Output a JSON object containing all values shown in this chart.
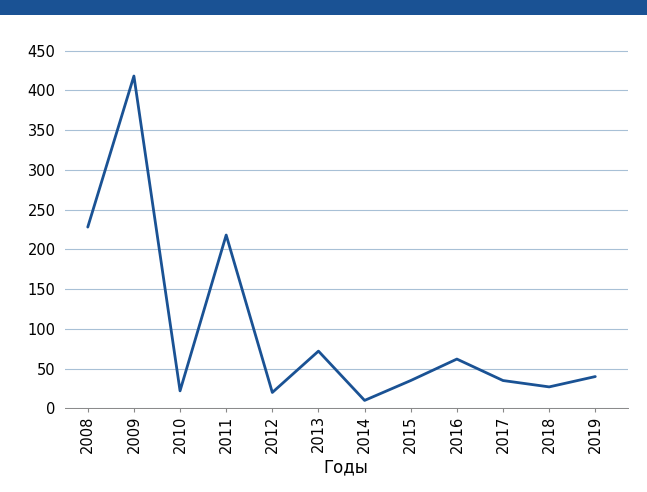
{
  "years": [
    2008,
    2009,
    2010,
    2011,
    2012,
    2013,
    2014,
    2015,
    2016,
    2017,
    2018,
    2019
  ],
  "values": [
    228,
    418,
    22,
    218,
    20,
    72,
    10,
    35,
    62,
    35,
    27,
    40
  ],
  "line_color": "#1a5294",
  "line_width": 2.0,
  "xlabel": "Годы",
  "ylim": [
    0,
    470
  ],
  "yticks": [
    0,
    50,
    100,
    150,
    200,
    250,
    300,
    350,
    400,
    450
  ],
  "grid_color": "#a8c0d6",
  "grid_linewidth": 0.8,
  "bg_color": "#ffffff",
  "top_bar_color": "#1a5294",
  "xlabel_fontsize": 12,
  "tick_fontsize": 10.5,
  "xlim": [
    2007.5,
    2019.7
  ]
}
